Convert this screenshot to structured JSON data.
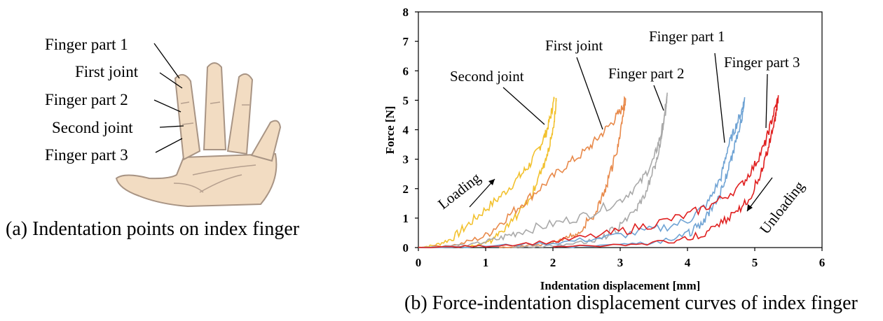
{
  "panel_a": {
    "caption": "(a) Indentation points on index finger",
    "labels": [
      "Finger part 1",
      "First joint",
      "Finger part 2",
      "Second joint",
      "Finger part 3"
    ],
    "colors": {
      "skin": "#f2dcc2",
      "outline": "#a89484",
      "crease": "#b59f8e"
    }
  },
  "panel_b": {
    "caption": "(b) Force-indentation displacement curves of index finger"
  },
  "chart_data": {
    "type": "line",
    "xlabel": "Indentation displacement [mm]",
    "ylabel": "Force [N]",
    "xlim": [
      0,
      6
    ],
    "ylim": [
      0,
      8
    ],
    "xticks": [
      0,
      1,
      2,
      3,
      4,
      5,
      6
    ],
    "yticks": [
      0,
      1,
      2,
      3,
      4,
      5,
      6,
      7,
      8
    ],
    "grid": false,
    "legend": "none",
    "annotations": [
      {
        "text": "Loading",
        "kind": "arrow-up-right"
      },
      {
        "text": "Unloading",
        "kind": "arrow-down-left"
      }
    ],
    "series": [
      {
        "name": "Second joint",
        "color": "#f2c12e",
        "loading": [
          [
            0,
            0
          ],
          [
            0.25,
            0.08
          ],
          [
            0.5,
            0.3
          ],
          [
            0.75,
            0.8
          ],
          [
            1.0,
            1.3
          ],
          [
            1.25,
            1.8
          ],
          [
            1.5,
            2.4
          ],
          [
            1.65,
            2.8
          ],
          [
            1.8,
            3.4
          ],
          [
            1.9,
            3.9
          ],
          [
            1.97,
            4.5
          ],
          [
            2.02,
            5.05
          ]
        ],
        "unloading": [
          [
            2.05,
            5.05
          ],
          [
            2.02,
            4.3
          ],
          [
            1.95,
            3.5
          ],
          [
            1.85,
            2.7
          ],
          [
            1.7,
            1.9
          ],
          [
            1.5,
            1.2
          ],
          [
            1.3,
            0.6
          ],
          [
            1.1,
            0.25
          ],
          [
            0.9,
            0.08
          ],
          [
            0.7,
            0.02
          ]
        ]
      },
      {
        "name": "First joint",
        "color": "#e8894a",
        "loading": [
          [
            0,
            0
          ],
          [
            0.6,
            0.1
          ],
          [
            1.0,
            0.4
          ],
          [
            1.3,
            1.0
          ],
          [
            1.6,
            1.6
          ],
          [
            1.9,
            2.2
          ],
          [
            2.2,
            2.8
          ],
          [
            2.5,
            3.3
          ],
          [
            2.7,
            3.8
          ],
          [
            2.9,
            4.3
          ],
          [
            3.02,
            4.7
          ],
          [
            3.08,
            5.05
          ]
        ],
        "unloading": [
          [
            3.08,
            5.05
          ],
          [
            3.02,
            4.2
          ],
          [
            2.95,
            3.3
          ],
          [
            2.85,
            2.5
          ],
          [
            2.75,
            1.8
          ],
          [
            2.6,
            1.1
          ],
          [
            2.4,
            0.6
          ],
          [
            2.2,
            0.3
          ],
          [
            1.9,
            0.12
          ],
          [
            1.5,
            0.04
          ],
          [
            1.2,
            0.0
          ]
        ]
      },
      {
        "name": "Finger part 2",
        "color": "#a9a9a9",
        "loading": [
          [
            0,
            0
          ],
          [
            0.8,
            0.1
          ],
          [
            1.2,
            0.3
          ],
          [
            1.5,
            0.55
          ],
          [
            2.0,
            0.8
          ],
          [
            2.5,
            1.1
          ],
          [
            3.0,
            1.6
          ],
          [
            3.3,
            2.2
          ],
          [
            3.5,
            3.0
          ],
          [
            3.6,
            3.8
          ],
          [
            3.67,
            4.5
          ],
          [
            3.7,
            5.15
          ]
        ],
        "unloading": [
          [
            3.7,
            5.15
          ],
          [
            3.65,
            4.4
          ],
          [
            3.6,
            3.6
          ],
          [
            3.52,
            2.8
          ],
          [
            3.4,
            2.0
          ],
          [
            3.25,
            1.3
          ],
          [
            3.0,
            0.7
          ],
          [
            2.7,
            0.3
          ],
          [
            2.3,
            0.12
          ],
          [
            1.8,
            0.04
          ],
          [
            1.4,
            0.0
          ]
        ]
      },
      {
        "name": "Finger part 1",
        "color": "#6fa3d4",
        "loading": [
          [
            0,
            0
          ],
          [
            1.0,
            0.05
          ],
          [
            2.0,
            0.15
          ],
          [
            2.8,
            0.35
          ],
          [
            3.5,
            0.6
          ],
          [
            4.0,
            0.9
          ],
          [
            4.3,
            1.5
          ],
          [
            4.5,
            2.4
          ],
          [
            4.6,
            3.4
          ],
          [
            4.7,
            4.0
          ],
          [
            4.8,
            4.6
          ],
          [
            4.85,
            5.05
          ]
        ],
        "unloading": [
          [
            4.85,
            5.05
          ],
          [
            4.8,
            4.3
          ],
          [
            4.7,
            3.4
          ],
          [
            4.6,
            2.6
          ],
          [
            4.5,
            1.9
          ],
          [
            4.35,
            1.3
          ],
          [
            4.2,
            0.8
          ],
          [
            4.0,
            0.45
          ],
          [
            3.6,
            0.2
          ],
          [
            3.0,
            0.08
          ],
          [
            2.0,
            0.02
          ]
        ]
      },
      {
        "name": "Finger part 3",
        "color": "#e02020",
        "loading": [
          [
            0,
            0
          ],
          [
            1.0,
            0.05
          ],
          [
            2.0,
            0.2
          ],
          [
            2.8,
            0.45
          ],
          [
            3.4,
            0.75
          ],
          [
            4.0,
            1.1
          ],
          [
            4.4,
            1.5
          ],
          [
            4.8,
            2.1
          ],
          [
            5.0,
            2.8
          ],
          [
            5.15,
            3.5
          ],
          [
            5.25,
            4.3
          ],
          [
            5.35,
            5.1
          ]
        ],
        "unloading": [
          [
            5.35,
            5.1
          ],
          [
            5.3,
            4.3
          ],
          [
            5.2,
            3.4
          ],
          [
            5.1,
            2.6
          ],
          [
            4.95,
            1.8
          ],
          [
            4.75,
            1.2
          ],
          [
            4.5,
            0.8
          ],
          [
            4.2,
            0.45
          ],
          [
            3.8,
            0.22
          ],
          [
            3.0,
            0.08
          ],
          [
            2.0,
            0.02
          ]
        ]
      }
    ]
  }
}
